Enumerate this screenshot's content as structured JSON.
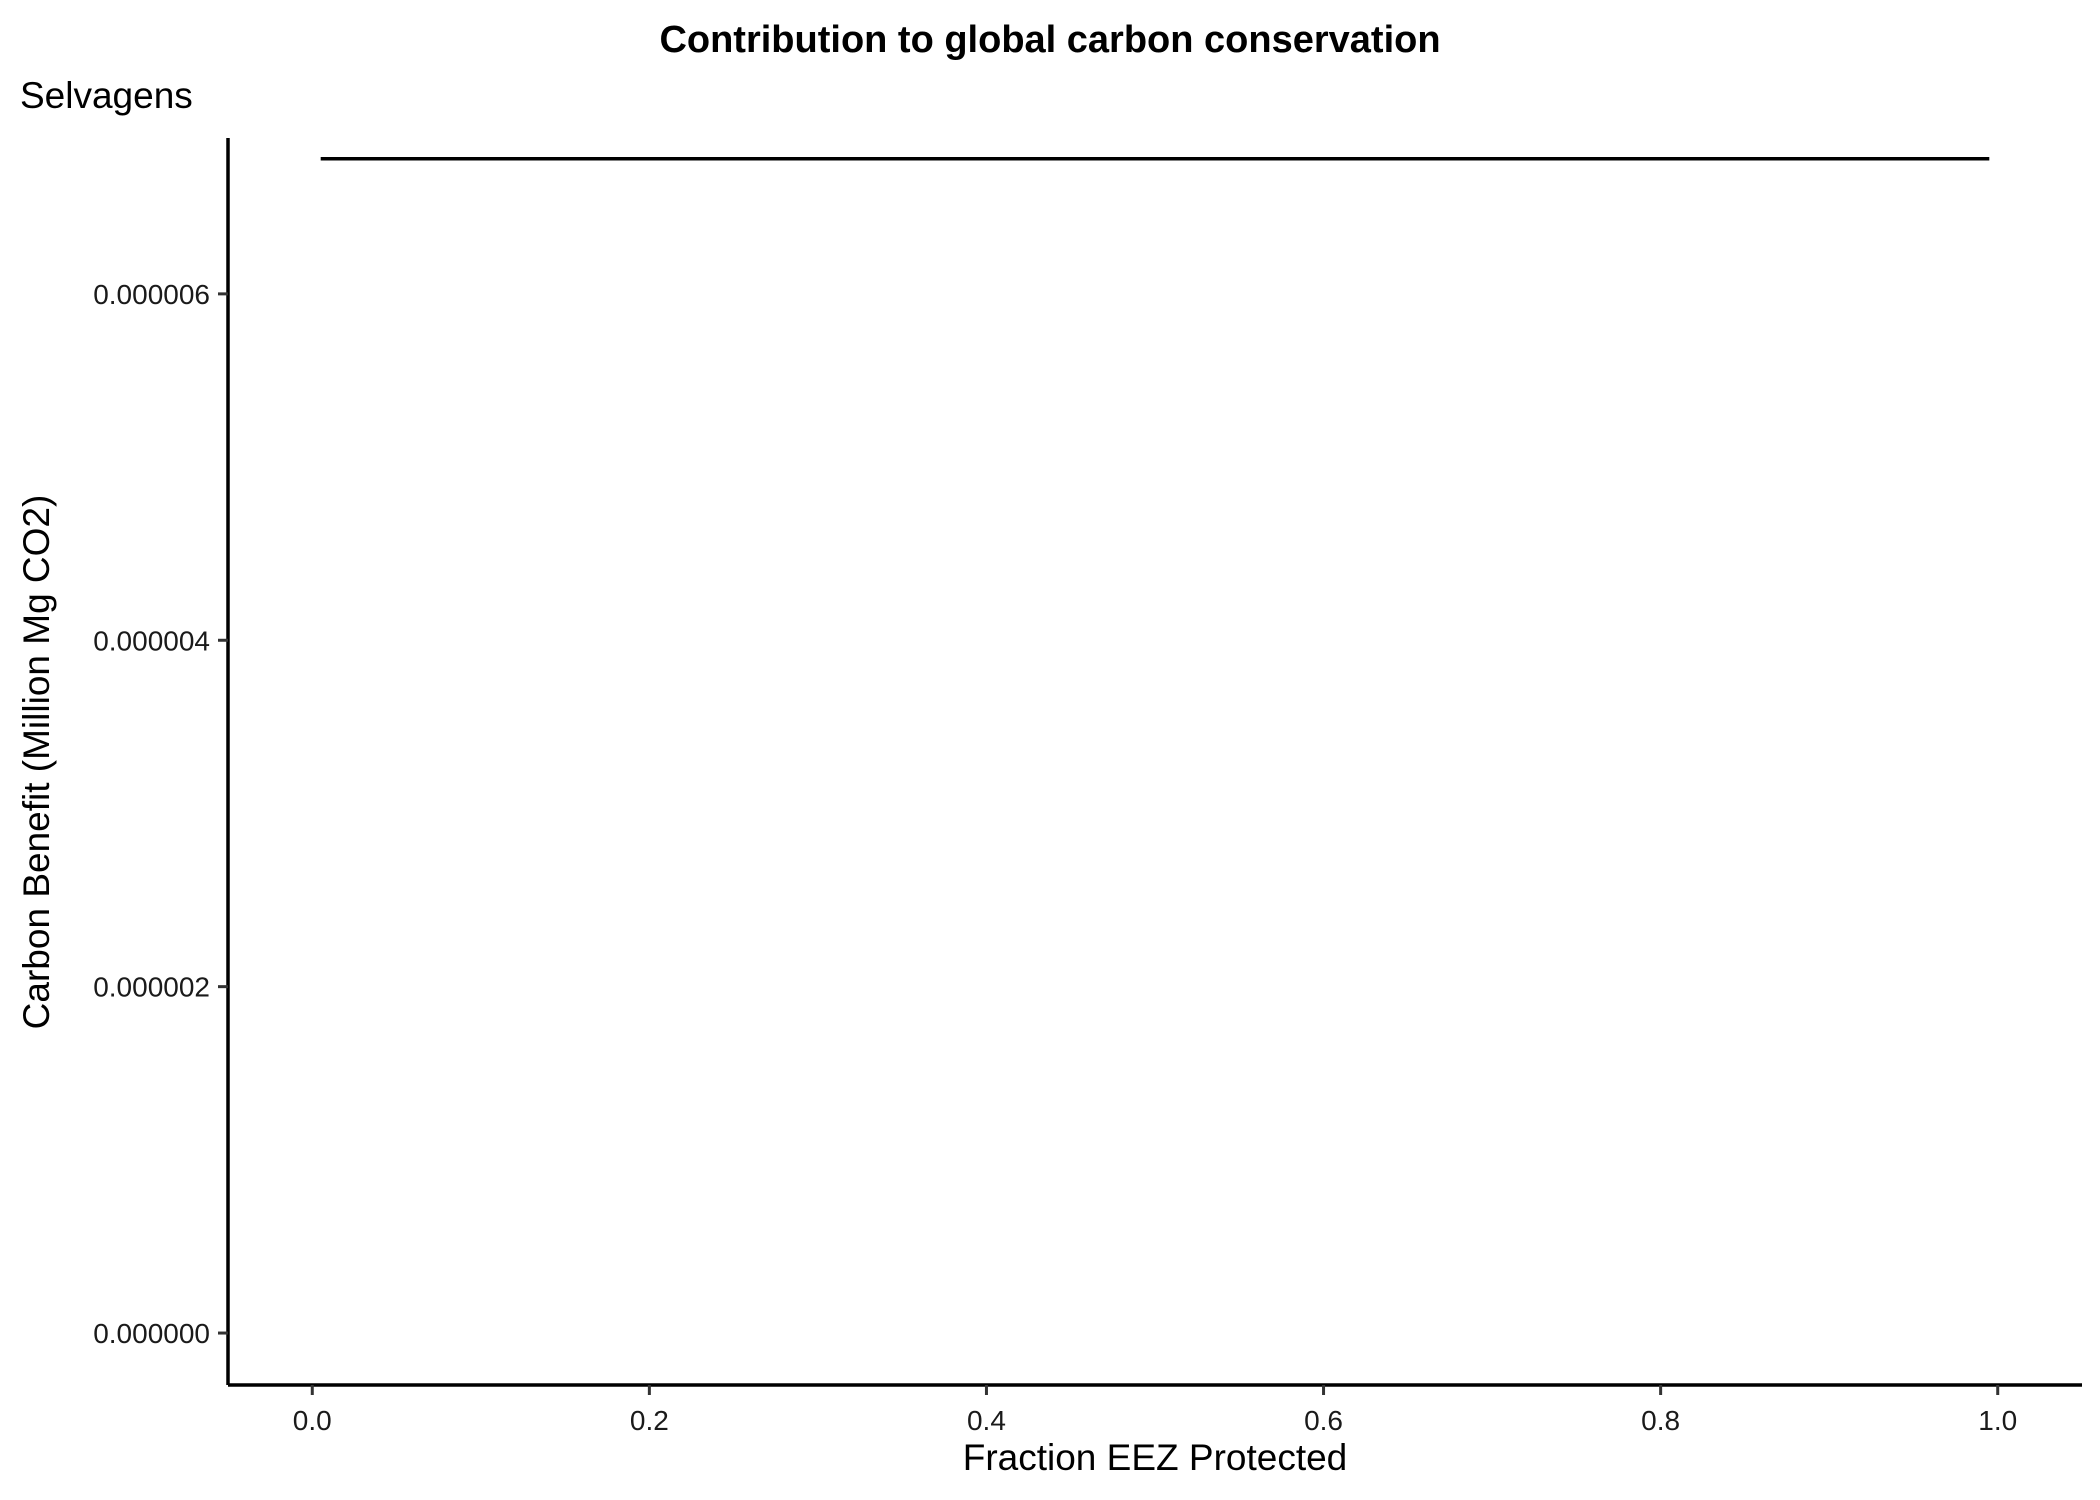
{
  "chart_data": {
    "type": "line",
    "title": "Contribution to global carbon conservation",
    "subtitle": "Selvagens",
    "xlabel": "Fraction EEZ Protected",
    "ylabel": "Carbon Benefit (Million Mg CO2)",
    "xlim": [
      -0.05,
      1.05
    ],
    "ylim": [
      -3e-07,
      6.9e-06
    ],
    "x_ticks": [
      {
        "value": 0.0,
        "label": "0.0"
      },
      {
        "value": 0.2,
        "label": "0.2"
      },
      {
        "value": 0.4,
        "label": "0.4"
      },
      {
        "value": 0.6,
        "label": "0.6"
      },
      {
        "value": 0.8,
        "label": "0.8"
      },
      {
        "value": 1.0,
        "label": "1.0"
      }
    ],
    "y_ticks": [
      {
        "value": 0.0,
        "label": "0.000000"
      },
      {
        "value": 2e-06,
        "label": "0.000002"
      },
      {
        "value": 4e-06,
        "label": "0.000004"
      },
      {
        "value": 6e-06,
        "label": "0.000006"
      }
    ],
    "grid": false,
    "line_color": "#000000",
    "series": [
      {
        "x": [
          0.005,
          0.1,
          0.2,
          0.3,
          0.4,
          0.5,
          0.6,
          0.7,
          0.8,
          0.9,
          0.995
        ],
        "values": [
          6.78e-06,
          6.78e-06,
          6.78e-06,
          6.78e-06,
          6.78e-06,
          6.78e-06,
          6.78e-06,
          6.78e-06,
          6.78e-06,
          6.78e-06,
          6.78e-06
        ]
      }
    ]
  }
}
